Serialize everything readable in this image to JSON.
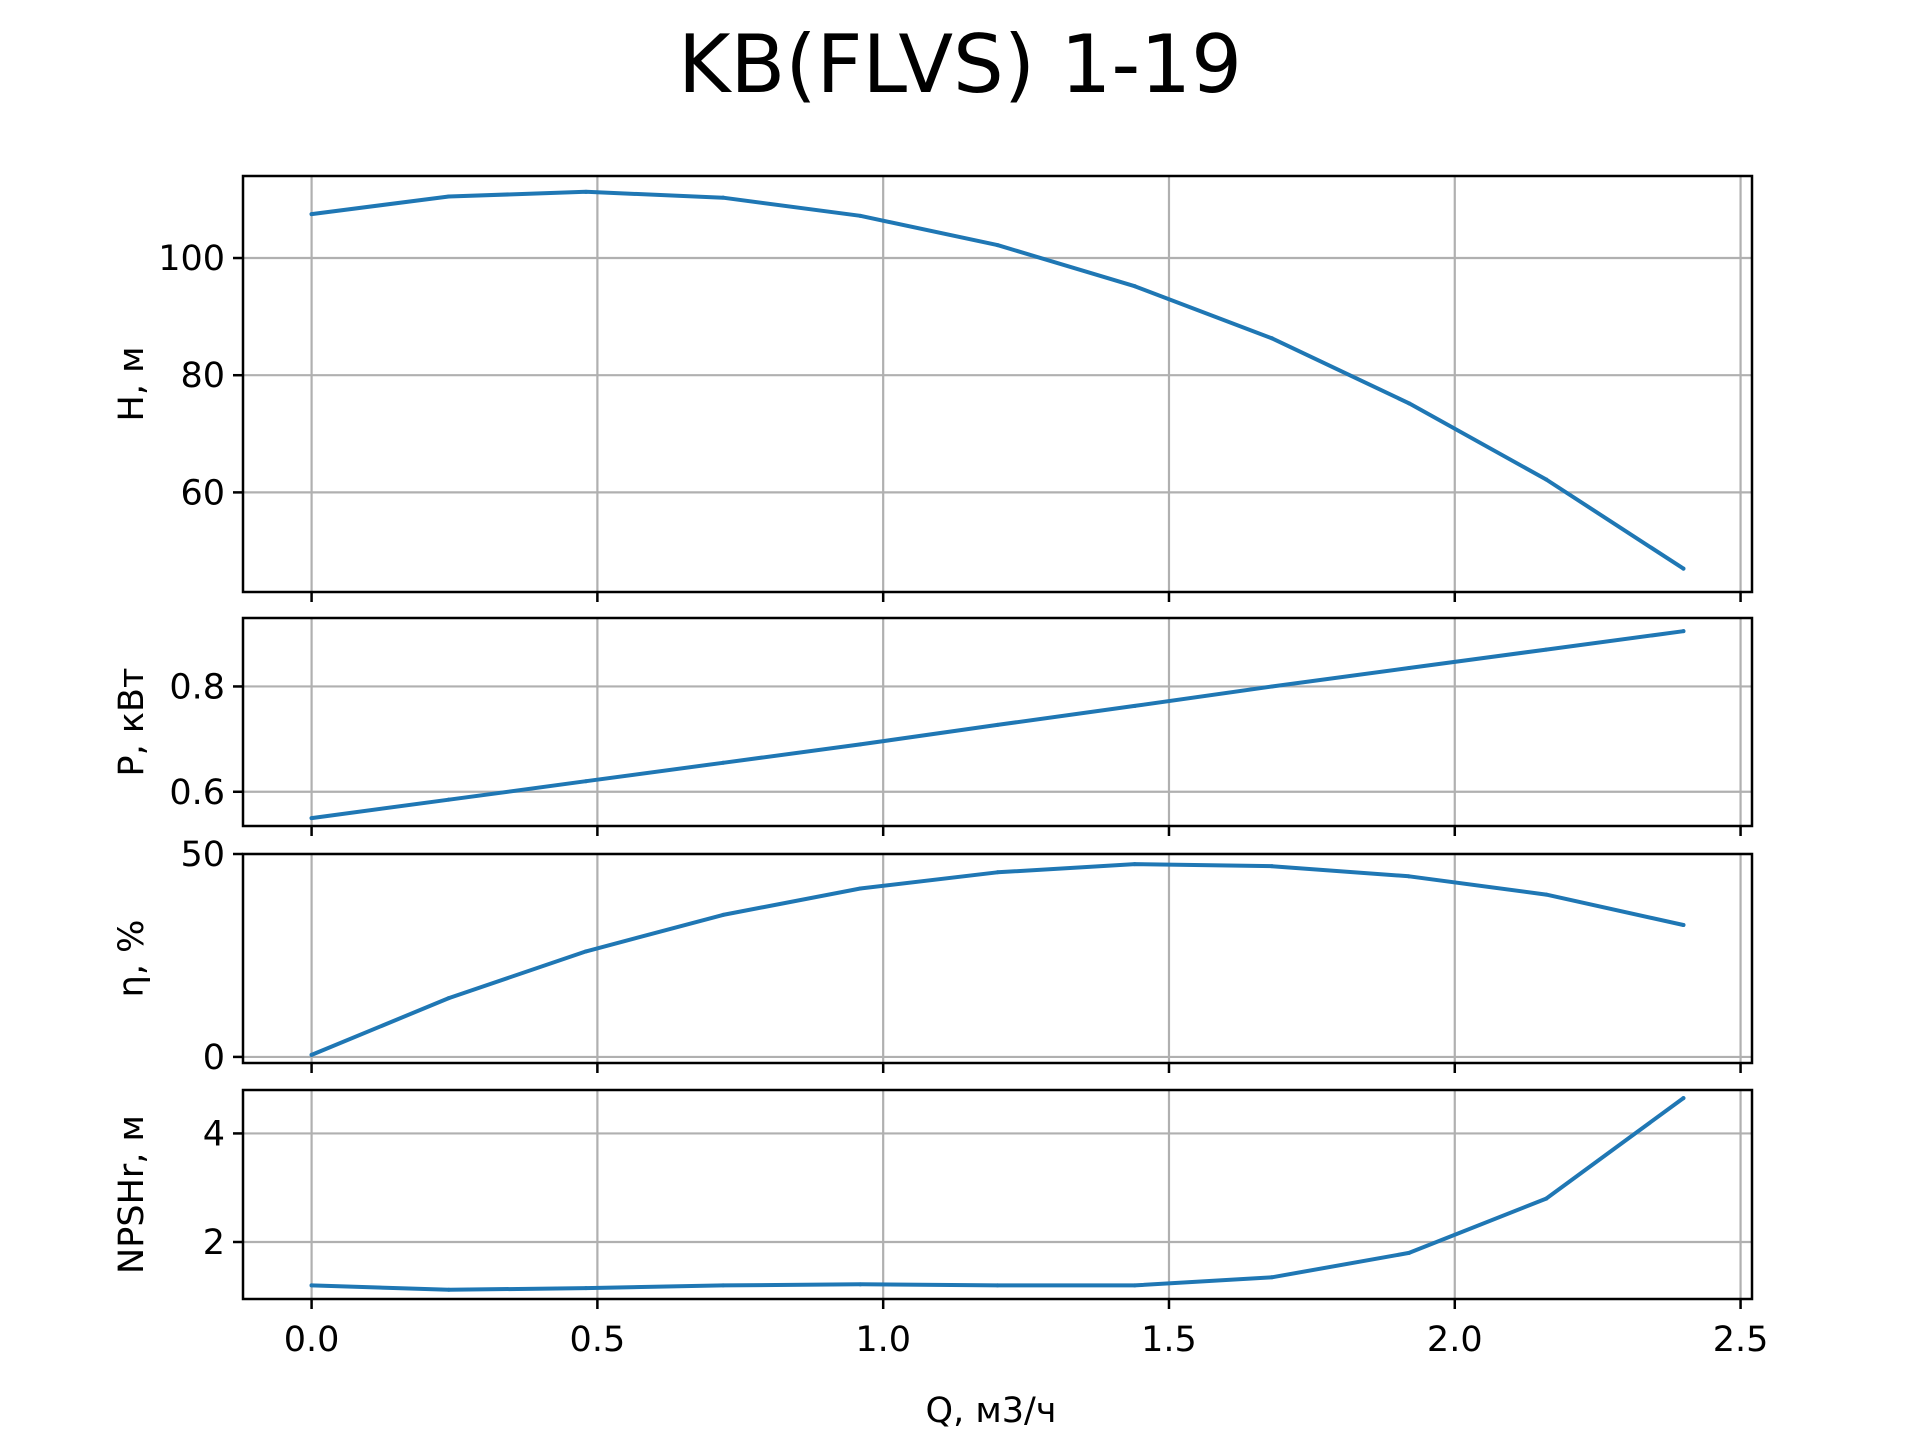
{
  "chart_data": {
    "type": "line",
    "title": "KB(FLVS) 1-19",
    "xlabel": "Q, м3/ч",
    "xlim": [
      -0.12,
      2.52
    ],
    "x_ticks": [
      0.0,
      0.5,
      1.0,
      1.5,
      2.0,
      2.5
    ],
    "x_tick_labels": [
      "0.0",
      "0.5",
      "1.0",
      "1.5",
      "2.0",
      "2.5"
    ],
    "x": [
      0.0,
      0.24,
      0.48,
      0.72,
      0.96,
      1.2,
      1.44,
      1.68,
      1.92,
      2.16,
      2.4
    ],
    "grid": true,
    "line_color": "#1f77b4",
    "panels": [
      {
        "ylabel": "H, м",
        "ylim": [
          43,
          114
        ],
        "y_ticks": [
          60,
          80,
          100
        ],
        "y_tick_labels": [
          "60",
          "80",
          "100"
        ],
        "values": [
          107.5,
          110.5,
          111.3,
          110.3,
          107.2,
          102.2,
          95.2,
          86.3,
          75.2,
          62.2,
          47.0
        ]
      },
      {
        "ylabel": "P, кВт",
        "ylim": [
          0.535,
          0.93
        ],
        "y_ticks": [
          0.6,
          0.8
        ],
        "y_tick_labels": [
          "0.6",
          "0.8"
        ],
        "values": [
          0.55,
          0.585,
          0.62,
          0.655,
          0.69,
          0.727,
          0.763,
          0.8,
          0.835,
          0.87,
          0.905
        ]
      },
      {
        "ylabel": "η, %",
        "ylim": [
          -1.5,
          50
        ],
        "y_ticks": [
          0,
          50
        ],
        "y_tick_labels": [
          "0",
          "50"
        ],
        "values": [
          0.5,
          14.5,
          26.0,
          35.0,
          41.5,
          45.5,
          47.5,
          47.0,
          44.5,
          40.0,
          32.5
        ]
      },
      {
        "ylabel": "NPSHr, м",
        "ylim": [
          0.95,
          4.8
        ],
        "y_ticks": [
          2,
          4
        ],
        "y_tick_labels": [
          "2",
          "4"
        ],
        "values": [
          1.2,
          1.12,
          1.15,
          1.2,
          1.22,
          1.2,
          1.2,
          1.35,
          1.8,
          2.8,
          4.65
        ]
      }
    ]
  }
}
